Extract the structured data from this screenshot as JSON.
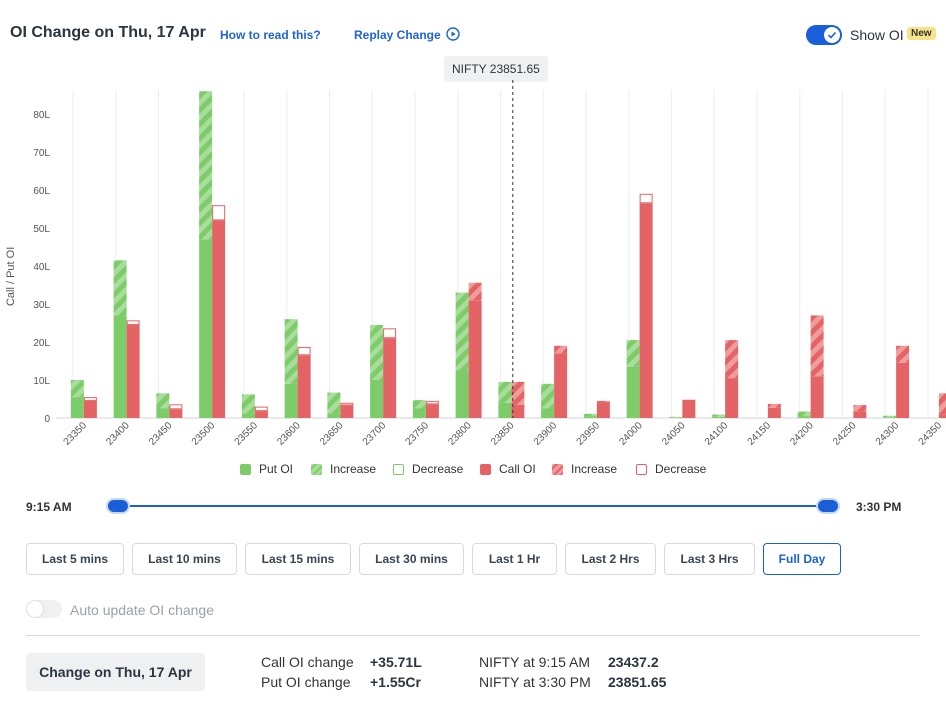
{
  "header": {
    "title": "OI Change on Thu, 17 Apr",
    "how_to_read": "How to read this?",
    "replay": "Replay Change",
    "show_oi_label": "Show OI",
    "new_badge": "New"
  },
  "spot_label": "NIFTY 23851.65",
  "colors": {
    "put_solid": "#7dcc6a",
    "put_stripe": "#a8dd9b",
    "call_solid": "#e46466",
    "call_stripe": "#ef9c9c",
    "accent": "#1a5fd8"
  },
  "legend": {
    "put_oi": "Put OI",
    "put_increase": "Increase",
    "put_decrease": "Decrease",
    "call_oi": "Call OI",
    "call_increase": "Increase",
    "call_decrease": "Decrease"
  },
  "chart_data": {
    "type": "bar",
    "ylabel": "Call / Put OI",
    "ylim": [
      0,
      85
    ],
    "y_ticks": [
      "0",
      "10L",
      "20L",
      "30L",
      "40L",
      "50L",
      "60L",
      "70L",
      "80L"
    ],
    "spot_value": 23851.65,
    "categories": [
      "23350",
      "23400",
      "23450",
      "23500",
      "23550",
      "23600",
      "23650",
      "23700",
      "23750",
      "23800",
      "23850",
      "23900",
      "23950",
      "24000",
      "24050",
      "24100",
      "24150",
      "24200",
      "24250",
      "24300",
      "24350"
    ],
    "put_base": [
      5.5,
      27,
      2.5,
      47,
      1.2,
      9,
      1.2,
      10,
      2.5,
      12.5,
      4,
      2.5,
      0.5,
      13.5,
      0.1,
      0.3,
      0,
      0.5,
      0,
      0.2,
      0
    ],
    "put_increase": [
      4.5,
      14.5,
      4,
      39,
      5,
      17,
      5.5,
      14.5,
      2.2,
      20.5,
      5.5,
      6.5,
      0.6,
      7,
      0.2,
      0.6,
      0,
      1.2,
      0,
      0.4,
      0
    ],
    "put_decrease": [
      0,
      0,
      0,
      0,
      0,
      0,
      0,
      0,
      0,
      0,
      0,
      0,
      0,
      0,
      0,
      0,
      0,
      0,
      0,
      0,
      0
    ],
    "call_base": [
      4.5,
      24.5,
      2.3,
      52,
      1.8,
      16.5,
      3.3,
      21,
      3.6,
      31,
      3.5,
      17,
      4.2,
      56.5,
      4.8,
      10.5,
      2.7,
      11,
      1.8,
      14.5,
      1
    ],
    "call_increase": [
      0,
      0,
      0,
      0,
      0,
      0,
      0,
      0,
      0,
      4.6,
      6,
      2,
      0.3,
      0,
      0,
      10,
      1,
      16,
      1.6,
      4.5,
      5.5
    ],
    "call_decrease": [
      1,
      1.2,
      1.3,
      4,
      1.2,
      2.2,
      0.7,
      2.6,
      0.9,
      0,
      0,
      0,
      0,
      2.5,
      0,
      0,
      0,
      0,
      0,
      0,
      0
    ]
  },
  "slider": {
    "start_time": "9:15 AM",
    "end_time": "3:30 PM",
    "start_pos": 0,
    "end_pos": 1
  },
  "ranges": [
    "Last 5 mins",
    "Last 10 mins",
    "Last 15 mins",
    "Last 30 mins",
    "Last 1 Hr",
    "Last 2 Hrs",
    "Last 3 Hrs",
    "Full Day"
  ],
  "active_range": "Full Day",
  "auto_update_label": "Auto update OI change",
  "summary": {
    "change_button": "Change on Thu, 17 Apr",
    "call_oi_change_label": "Call OI change",
    "call_oi_change_value": "+35.71L",
    "put_oi_change_label": "Put OI change",
    "put_oi_change_value": "+1.55Cr",
    "nifty_start_label": "NIFTY at 9:15 AM",
    "nifty_start_value": "23437.2",
    "nifty_end_label": "NIFTY at 3:30 PM",
    "nifty_end_value": "23851.65"
  }
}
